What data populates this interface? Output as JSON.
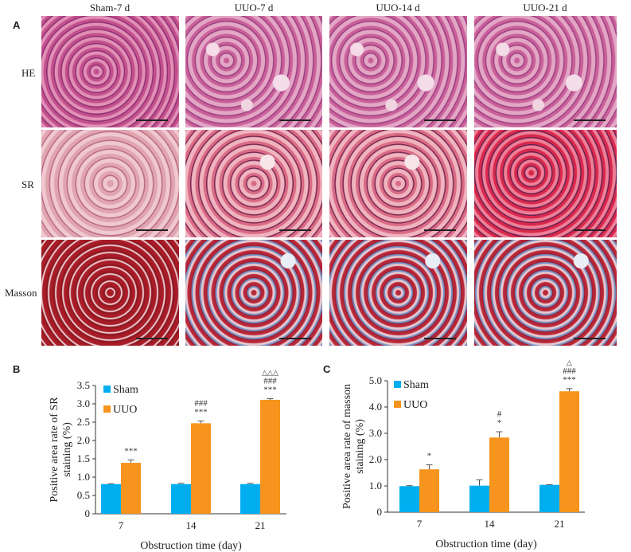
{
  "panel_a": {
    "label": "A",
    "columns": [
      "Sham-7 d",
      "UUO-7 d",
      "UUO-14 d",
      "UUO-21 d"
    ],
    "rows": [
      "HE",
      "SR",
      "Masson"
    ]
  },
  "chart_data": [
    {
      "panel": "B",
      "type": "bar",
      "categories": [
        "7",
        "14",
        "21"
      ],
      "series": [
        {
          "name": "Sham",
          "color": "#00aeef",
          "values": [
            0.81,
            0.81,
            0.81
          ],
          "errors": [
            0.01,
            0.02,
            0.02
          ]
        },
        {
          "name": "UUO",
          "color": "#f7941d",
          "values": [
            1.39,
            2.47,
            3.11
          ],
          "errors": [
            0.08,
            0.06,
            0.03
          ]
        }
      ],
      "annotations": [
        [
          "***"
        ],
        [
          "###",
          "***"
        ],
        [
          "△△△",
          "###",
          "***"
        ]
      ],
      "xlabel": "Obstruction time (day)",
      "ylabel": [
        "Positive area rate of SR",
        "staining (%)"
      ],
      "ylim": [
        0,
        3.5
      ],
      "yticks": [
        "0",
        "0.5",
        "1.0",
        "1.5",
        "2.0",
        "2.5",
        "3.0",
        "3.5"
      ],
      "legend": "top-left"
    },
    {
      "panel": "C",
      "type": "bar",
      "categories": [
        "7",
        "14",
        "21"
      ],
      "series": [
        {
          "name": "Sham",
          "color": "#00aeef",
          "values": [
            0.99,
            1.01,
            1.04
          ],
          "errors": [
            0.02,
            0.22,
            0.01
          ]
        },
        {
          "name": "UUO",
          "color": "#f7941d",
          "values": [
            1.63,
            2.84,
            4.6
          ],
          "errors": [
            0.17,
            0.22,
            0.1
          ]
        }
      ],
      "annotations": [
        [
          "*"
        ],
        [
          "#",
          "*"
        ],
        [
          "△",
          "###",
          "***"
        ]
      ],
      "xlabel": "Obstruction time (day)",
      "ylabel": [
        "Positive area rate of masson",
        "staining (%)"
      ],
      "ylim": [
        0,
        5
      ],
      "yticks": [
        "0",
        "1.0",
        "2.0",
        "3.0",
        "4.0",
        "5.0"
      ],
      "legend": "top-left"
    }
  ]
}
